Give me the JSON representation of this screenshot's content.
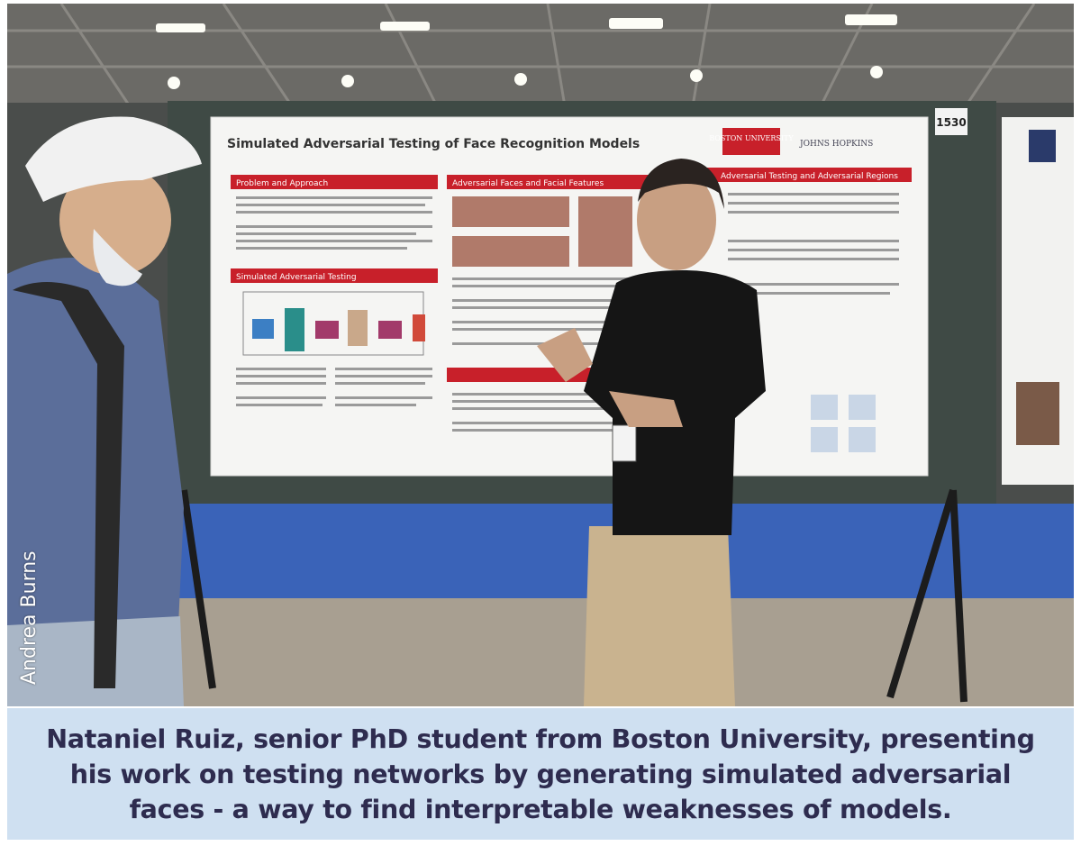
{
  "photo": {
    "poster_title": "Simulated Adversarial Testing of Face Recognition Models",
    "poster_number": "1530",
    "logos": [
      "BOSTON UNIVERSITY",
      "JOHNS HOPKINS"
    ],
    "poster_sections": [
      "Problem and Approach",
      "Simulated Adversarial Testing",
      "Adversarial Faces and Facial Features",
      "Adversarial Testing and Adversarial Regions"
    ],
    "credit": "Andrea Burns"
  },
  "caption": {
    "lines": [
      "Nataniel Ruiz, senior PhD student from Boston University, presenting",
      "his work on testing networks by generating simulated adversarial",
      "faces - a way to find interpretable weaknesses of models."
    ]
  },
  "colors": {
    "caption_bg": "#cfe0f1",
    "caption_text": "#2e2c4f",
    "poster_red": "#c8202a",
    "carpet": "#3a63b8"
  }
}
